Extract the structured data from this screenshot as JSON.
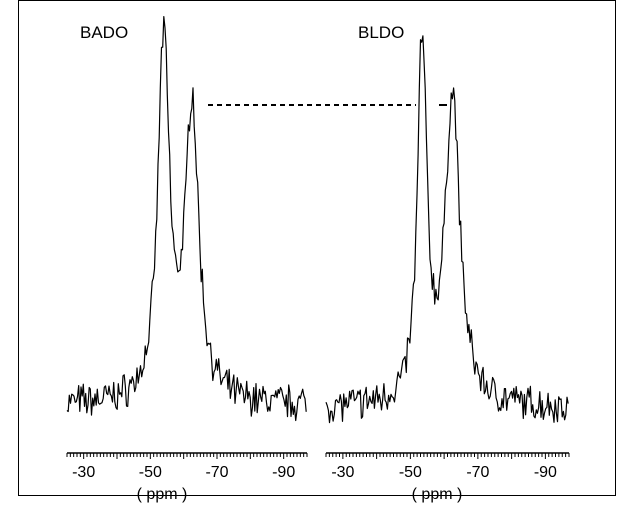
{
  "chart_data": [
    {
      "type": "line",
      "title": "BADO",
      "xlabel": "( ppm )",
      "ylabel": "",
      "x_ticks": [
        "-30",
        "-50",
        "-70",
        "-90"
      ],
      "x_tick_values": [
        -30,
        -50,
        -70,
        -90
      ],
      "xlim": [
        -25,
        -97
      ],
      "ylim": [
        0,
        1.05
      ],
      "grid": false,
      "series": [
        {
          "name": "",
          "peaks": [
            {
              "center": -54.0,
              "height": 1.0,
              "width": 2.0
            },
            {
              "center": -62.5,
              "height": 0.8,
              "width": 2.4
            }
          ],
          "x": [
            -25,
            -30,
            -35,
            -40,
            -45,
            -48,
            -50,
            -52,
            -53,
            -54,
            -55,
            -56,
            -57,
            -58,
            -59,
            -60,
            -61,
            -62,
            -62.5,
            -63,
            -64,
            -65,
            -66,
            -67,
            -68,
            -70,
            -75,
            -80,
            -85,
            -90,
            -95,
            -97
          ],
          "y": [
            0.03,
            0.02,
            0.03,
            0.05,
            0.07,
            0.12,
            0.22,
            0.55,
            0.82,
            1.0,
            0.85,
            0.55,
            0.32,
            0.2,
            0.17,
            0.23,
            0.45,
            0.72,
            0.8,
            0.76,
            0.55,
            0.3,
            0.15,
            0.09,
            0.05,
            0.02,
            0.0,
            0.0,
            0.0,
            0.0,
            0.0,
            0.0
          ]
        }
      ]
    },
    {
      "type": "line",
      "title": "BLDO",
      "xlabel": "( ppm )",
      "ylabel": "",
      "x_ticks": [
        "-30",
        "-50",
        "-70",
        "-90"
      ],
      "x_tick_values": [
        -30,
        -50,
        -70,
        -90
      ],
      "xlim": [
        -25,
        -97
      ],
      "ylim": [
        0,
        1.05
      ],
      "grid": false,
      "series": [
        {
          "name": "",
          "peaks": [
            {
              "center": -53.5,
              "height": 1.0,
              "width": 1.6
            },
            {
              "center": -62.5,
              "height": 0.84,
              "width": 2.6
            }
          ],
          "x": [
            -25,
            -30,
            -35,
            -40,
            -45,
            -48,
            -50,
            -51,
            -52,
            -53,
            -53.5,
            -54,
            -55,
            -56,
            -57,
            -58,
            -59,
            -60,
            -61,
            -62,
            -62.5,
            -63,
            -64,
            -65,
            -66,
            -68,
            -70,
            -75,
            -80,
            -85,
            -90,
            -95,
            -97
          ],
          "y": [
            0.02,
            0.01,
            0.02,
            0.04,
            0.07,
            0.14,
            0.25,
            0.4,
            0.65,
            0.93,
            1.0,
            0.93,
            0.6,
            0.38,
            0.27,
            0.23,
            0.26,
            0.4,
            0.6,
            0.78,
            0.84,
            0.82,
            0.66,
            0.45,
            0.28,
            0.12,
            0.05,
            0.01,
            0.0,
            0.0,
            0.0,
            0.0,
            0.0
          ]
        }
      ]
    }
  ]
}
